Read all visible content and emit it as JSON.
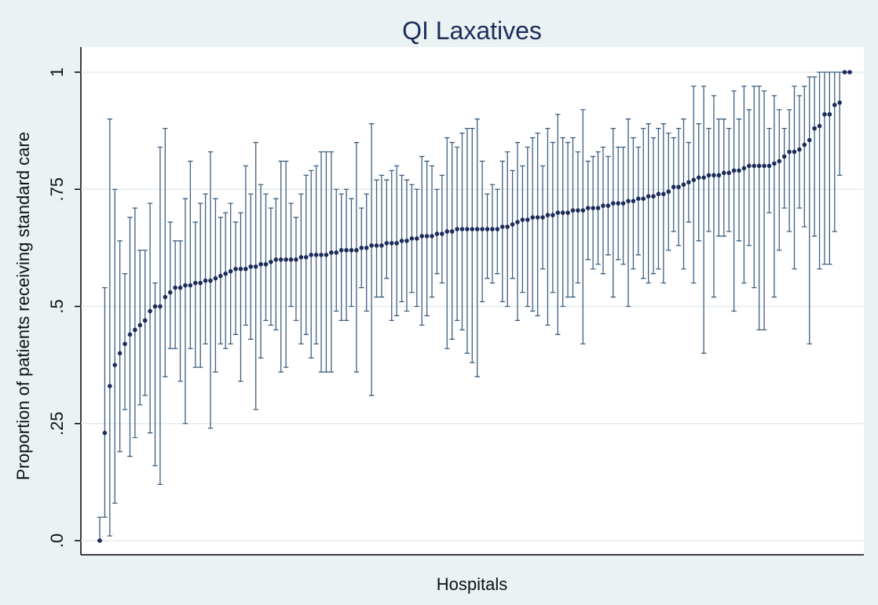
{
  "chart_data": {
    "type": "errorbar",
    "title": "QI Laxatives",
    "x_label": "Hospitals",
    "y_label": "Proportion of patients receiving standard care",
    "ylim": [
      0,
      1
    ],
    "yticks": [
      {
        "value": 0,
        "label": ".0"
      },
      {
        "value": 0.25,
        "label": ".25"
      },
      {
        "value": 0.5,
        "label": ".5"
      },
      {
        "value": 0.75,
        "label": ".75"
      },
      1
    ],
    "grid": true,
    "series": [
      {
        "color": "#1c2d5c",
        "bar_color": "#3e5f80",
        "values": [
          0,
          0.23,
          0.33,
          0.375,
          0.4,
          0.42,
          0.44,
          0.45,
          0.46,
          0.47,
          0.49,
          0.5,
          0.5,
          0.52,
          0.53,
          0.54,
          0.54,
          0.545,
          0.545,
          0.55,
          0.55,
          0.555,
          0.555,
          0.56,
          0.565,
          0.57,
          0.575,
          0.58,
          0.58,
          0.58,
          0.585,
          0.585,
          0.59,
          0.59,
          0.595,
          0.6,
          0.6,
          0.6,
          0.6,
          0.6,
          0.605,
          0.605,
          0.61,
          0.61,
          0.61,
          0.61,
          0.615,
          0.615,
          0.62,
          0.62,
          0.62,
          0.62,
          0.625,
          0.625,
          0.63,
          0.63,
          0.63,
          0.635,
          0.635,
          0.635,
          0.64,
          0.64,
          0.645,
          0.645,
          0.65,
          0.65,
          0.65,
          0.655,
          0.655,
          0.66,
          0.66,
          0.665,
          0.665,
          0.665,
          0.665,
          0.665,
          0.665,
          0.665,
          0.665,
          0.665,
          0.67,
          0.67,
          0.675,
          0.68,
          0.685,
          0.685,
          0.69,
          0.69,
          0.69,
          0.695,
          0.695,
          0.7,
          0.7,
          0.7,
          0.705,
          0.705,
          0.705,
          0.71,
          0.71,
          0.71,
          0.715,
          0.715,
          0.72,
          0.72,
          0.72,
          0.725,
          0.725,
          0.73,
          0.73,
          0.735,
          0.735,
          0.74,
          0.74,
          0.745,
          0.755,
          0.755,
          0.76,
          0.765,
          0.77,
          0.775,
          0.775,
          0.78,
          0.78,
          0.78,
          0.785,
          0.785,
          0.79,
          0.79,
          0.795,
          0.8,
          0.8,
          0.8,
          0.8,
          0.8,
          0.805,
          0.81,
          0.82,
          0.83,
          0.83,
          0.835,
          0.845,
          0.855,
          0.88,
          0.885,
          0.91,
          0.91,
          0.93,
          0.935,
          1,
          1
        ],
        "lower": [
          0,
          0.05,
          0.01,
          0.08,
          0.19,
          0.28,
          0.18,
          0.22,
          0.29,
          0.31,
          0.23,
          0.16,
          0.12,
          0.35,
          0.41,
          0.41,
          0.34,
          0.25,
          0.41,
          0.37,
          0.37,
          0.42,
          0.24,
          0.36,
          0.42,
          0.41,
          0.42,
          0.44,
          0.34,
          0.46,
          0.43,
          0.28,
          0.39,
          0.47,
          0.46,
          0.45,
          0.36,
          0.37,
          0.5,
          0.47,
          0.42,
          0.44,
          0.39,
          0.42,
          0.36,
          0.36,
          0.36,
          0.49,
          0.47,
          0.47,
          0.5,
          0.36,
          0.54,
          0.49,
          0.31,
          0.52,
          0.52,
          0.56,
          0.47,
          0.48,
          0.51,
          0.49,
          0.53,
          0.5,
          0.46,
          0.48,
          0.52,
          0.57,
          0.55,
          0.41,
          0.43,
          0.47,
          0.45,
          0.4,
          0.38,
          0.35,
          0.51,
          0.56,
          0.55,
          0.57,
          0.51,
          0.5,
          0.56,
          0.47,
          0.53,
          0.5,
          0.49,
          0.48,
          0.58,
          0.46,
          0.53,
          0.44,
          0.5,
          0.52,
          0.52,
          0.55,
          0.42,
          0.6,
          0.58,
          0.59,
          0.57,
          0.61,
          0.52,
          0.6,
          0.59,
          0.5,
          0.58,
          0.61,
          0.56,
          0.55,
          0.57,
          0.58,
          0.55,
          0.62,
          0.66,
          0.63,
          0.58,
          0.68,
          0.55,
          0.64,
          0.4,
          0.66,
          0.52,
          0.65,
          0.65,
          0.66,
          0.49,
          0.64,
          0.55,
          0.63,
          0.54,
          0.45,
          0.45,
          0.7,
          0.52,
          0.62,
          0.71,
          0.66,
          0.58,
          0.71,
          0.67,
          0.42,
          0.65,
          0.58,
          0.59,
          0.59,
          0.66,
          0.78,
          1,
          1
        ],
        "upper": [
          0.05,
          0.54,
          0.9,
          0.75,
          0.64,
          0.57,
          0.69,
          0.71,
          0.62,
          0.62,
          0.72,
          0.55,
          0.84,
          0.88,
          0.68,
          0.64,
          0.64,
          0.73,
          0.81,
          0.68,
          0.72,
          0.74,
          0.83,
          0.73,
          0.69,
          0.7,
          0.72,
          0.68,
          0.7,
          0.8,
          0.74,
          0.85,
          0.76,
          0.74,
          0.71,
          0.73,
          0.81,
          0.81,
          0.72,
          0.69,
          0.74,
          0.78,
          0.79,
          0.8,
          0.83,
          0.83,
          0.83,
          0.75,
          0.74,
          0.75,
          0.73,
          0.85,
          0.71,
          0.74,
          0.89,
          0.77,
          0.78,
          0.77,
          0.79,
          0.8,
          0.78,
          0.77,
          0.76,
          0.75,
          0.82,
          0.81,
          0.8,
          0.75,
          0.78,
          0.86,
          0.85,
          0.84,
          0.87,
          0.88,
          0.88,
          0.9,
          0.81,
          0.74,
          0.76,
          0.75,
          0.81,
          0.83,
          0.79,
          0.85,
          0.8,
          0.84,
          0.86,
          0.87,
          0.8,
          0.88,
          0.85,
          0.91,
          0.86,
          0.85,
          0.86,
          0.83,
          0.92,
          0.81,
          0.82,
          0.83,
          0.84,
          0.82,
          0.88,
          0.84,
          0.84,
          0.9,
          0.86,
          0.84,
          0.88,
          0.89,
          0.86,
          0.88,
          0.89,
          0.87,
          0.86,
          0.88,
          0.9,
          0.85,
          0.97,
          0.89,
          0.97,
          0.88,
          0.95,
          0.9,
          0.9,
          0.88,
          0.96,
          0.9,
          0.97,
          0.92,
          0.97,
          0.97,
          0.96,
          0.88,
          0.95,
          0.92,
          0.88,
          0.92,
          0.97,
          0.95,
          0.97,
          0.99,
          0.99,
          1,
          1,
          1,
          1,
          1,
          1,
          1
        ]
      }
    ]
  }
}
